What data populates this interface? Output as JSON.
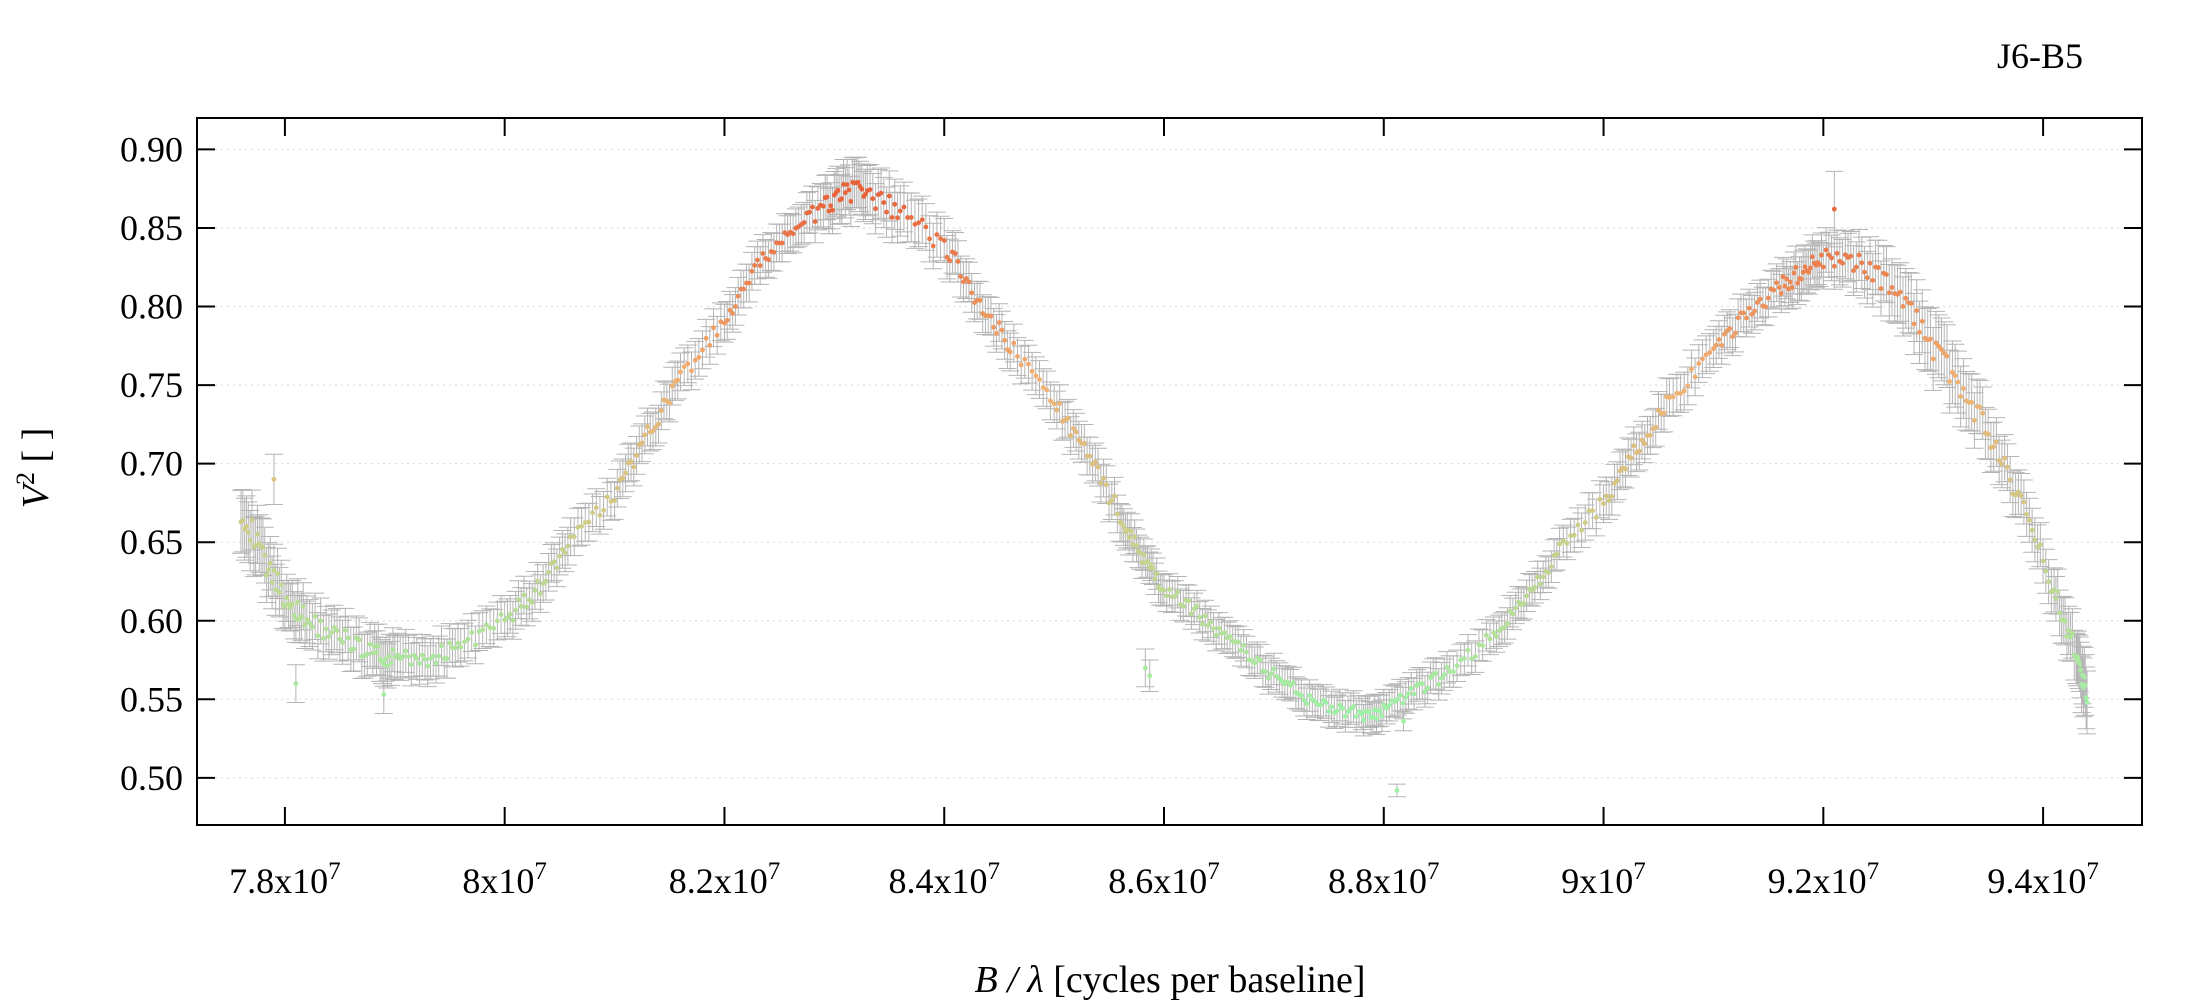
{
  "chart_data": {
    "type": "scatter",
    "title": "J6-B5",
    "xlabel": {
      "var": "B / λ",
      "rest": " [cycles per baseline]"
    },
    "ylabel": {
      "var": "V",
      "sup": "2",
      "rest": " [ ]"
    },
    "xlim": [
      77200000,
      94900000
    ],
    "ylim": [
      0.47,
      0.92
    ],
    "x_ticks": [
      {
        "value": 78000000,
        "mantissa": "7.8x10",
        "exp": "7"
      },
      {
        "value": 80000000,
        "mantissa": "8x10",
        "exp": "7"
      },
      {
        "value": 82000000,
        "mantissa": "8.2x10",
        "exp": "7"
      },
      {
        "value": 84000000,
        "mantissa": "8.4x10",
        "exp": "7"
      },
      {
        "value": 86000000,
        "mantissa": "8.6x10",
        "exp": "7"
      },
      {
        "value": 88000000,
        "mantissa": "8.8x10",
        "exp": "7"
      },
      {
        "value": 90000000,
        "mantissa": "9x10",
        "exp": "7"
      },
      {
        "value": 92000000,
        "mantissa": "9.2x10",
        "exp": "7"
      },
      {
        "value": 94000000,
        "mantissa": "9.4x10",
        "exp": "7"
      }
    ],
    "y_ticks": [
      {
        "value": 0.5,
        "label": "0.50"
      },
      {
        "value": 0.55,
        "label": "0.55"
      },
      {
        "value": 0.6,
        "label": "0.60"
      },
      {
        "value": 0.65,
        "label": "0.65"
      },
      {
        "value": 0.7,
        "label": "0.70"
      },
      {
        "value": 0.75,
        "label": "0.75"
      },
      {
        "value": 0.8,
        "label": "0.80"
      },
      {
        "value": 0.85,
        "label": "0.85"
      },
      {
        "value": 0.9,
        "label": "0.90"
      }
    ],
    "grid": "horizontal-dotted",
    "colors": {
      "low": "#9df2a6",
      "mid": "#f2b070",
      "high": "#e8633a",
      "errorbar": "#b4b4b4",
      "axis": "#000000",
      "grid": "#dddddd"
    },
    "color_scale": [
      0.54,
      0.87
    ],
    "series": [
      {
        "x": [
          77600000,
          77800000,
          78000000,
          78200000,
          78500000,
          78800000,
          79000000,
          79300000,
          79600000,
          80000000,
          80300000,
          80600000,
          81000000,
          81300000,
          81600000,
          82000000,
          82300000,
          82600000,
          82900000,
          83100000,
          83300000,
          83600000,
          84000000,
          84300000,
          84600000,
          85000000,
          85300000,
          85600000,
          85800000,
          86000000,
          86300000,
          86600000,
          86900000,
          87200000,
          87500000,
          87800000,
          88000000,
          88300000,
          88600000,
          89000000,
          89300000,
          89600000,
          90000000,
          90300000,
          90600000,
          91000000,
          91300000,
          91600000,
          91800000,
          92000000,
          92300000,
          92600000,
          92900000,
          93200000,
          93500000,
          93800000,
          94100000,
          94300000,
          94400000
        ],
        "y": [
          0.672,
          0.64,
          0.615,
          0.6,
          0.59,
          0.58,
          0.575,
          0.575,
          0.585,
          0.6,
          0.62,
          0.65,
          0.68,
          0.718,
          0.755,
          0.79,
          0.825,
          0.848,
          0.862,
          0.875,
          0.87,
          0.86,
          0.84,
          0.805,
          0.775,
          0.74,
          0.705,
          0.668,
          0.64,
          0.62,
          0.605,
          0.588,
          0.57,
          0.555,
          0.545,
          0.54,
          0.542,
          0.555,
          0.568,
          0.59,
          0.615,
          0.645,
          0.675,
          0.71,
          0.74,
          0.77,
          0.795,
          0.812,
          0.822,
          0.83,
          0.828,
          0.815,
          0.785,
          0.755,
          0.72,
          0.675,
          0.62,
          0.58,
          0.548
        ],
        "err": [
          0.02,
          0.018,
          0.015,
          0.015,
          0.014,
          0.014,
          0.014,
          0.013,
          0.012,
          0.012,
          0.012,
          0.012,
          0.012,
          0.012,
          0.012,
          0.012,
          0.012,
          0.012,
          0.014,
          0.016,
          0.016,
          0.016,
          0.014,
          0.012,
          0.012,
          0.012,
          0.012,
          0.012,
          0.01,
          0.01,
          0.01,
          0.01,
          0.01,
          0.01,
          0.01,
          0.01,
          0.01,
          0.01,
          0.01,
          0.01,
          0.01,
          0.01,
          0.012,
          0.012,
          0.012,
          0.012,
          0.012,
          0.012,
          0.014,
          0.014,
          0.016,
          0.018,
          0.02,
          0.02,
          0.016,
          0.014,
          0.014,
          0.016,
          0.02
        ]
      }
    ],
    "outliers": [
      {
        "x": 85830000,
        "y": 0.57,
        "err": 0.012
      },
      {
        "x": 85870000,
        "y": 0.565,
        "err": 0.01
      },
      {
        "x": 88120000,
        "y": 0.492,
        "err": 0.004
      },
      {
        "x": 88180000,
        "y": 0.536,
        "err": 0.006
      },
      {
        "x": 92100000,
        "y": 0.862,
        "err": 0.024
      },
      {
        "x": 78100000,
        "y": 0.56,
        "err": 0.012
      },
      {
        "x": 78900000,
        "y": 0.553,
        "err": 0.012
      },
      {
        "x": 77900000,
        "y": 0.69,
        "err": 0.016
      }
    ]
  }
}
